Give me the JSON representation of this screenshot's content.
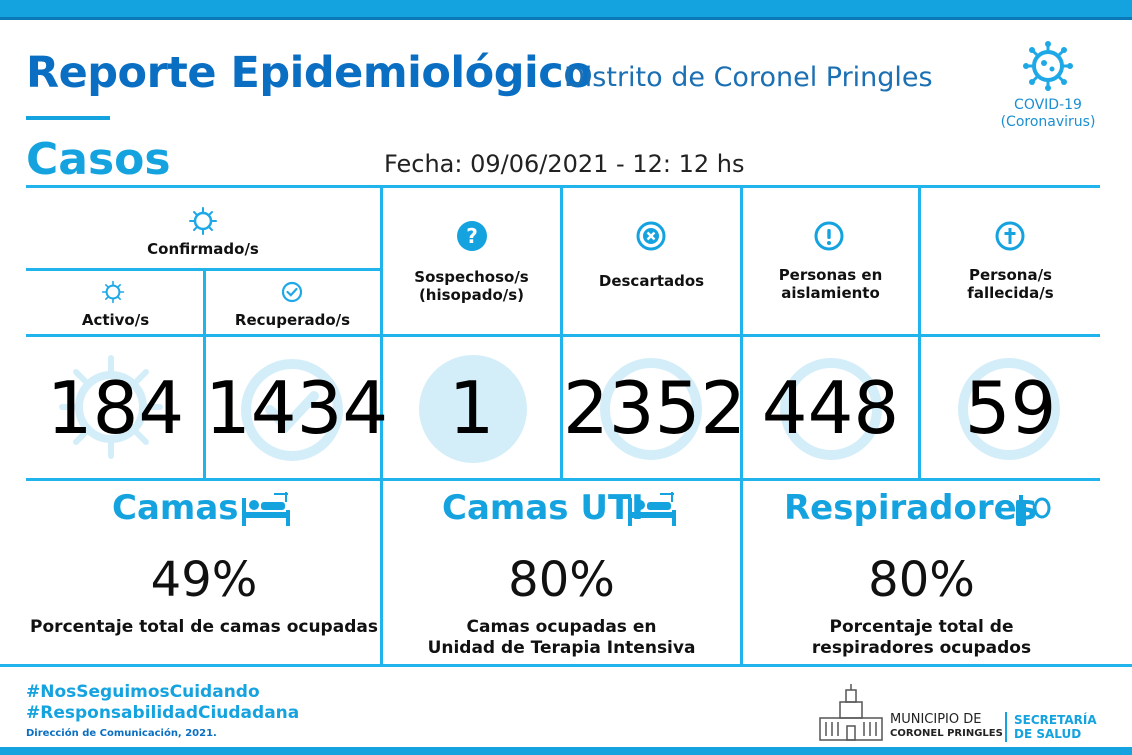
{
  "header": {
    "title": "Reporte Epidemiológico",
    "subtitle": "Distrito de Coronel Pringles",
    "section": "Casos",
    "date": "Fecha: 09/06/2021 - 12: 12 hs",
    "logo_text_1": "COVID-19",
    "logo_text_2": "(Coronavirus)"
  },
  "cases": {
    "confirmed_label": "Confirmado/s",
    "active_label": "Activo/s",
    "recovered_label": "Recuperado/s",
    "suspected_label_1": "Sospechoso/s",
    "suspected_label_2": "(hisopado/s)",
    "discarded_label": "Descartados",
    "isolation_label_1": "Personas en",
    "isolation_label_2": "aislamiento",
    "deceased_label_1": "Persona/s",
    "deceased_label_2": "fallecida/s",
    "active": "184",
    "recovered": "1434",
    "suspected": "1",
    "discarded": "2352",
    "isolation": "448",
    "deceased": "59"
  },
  "beds": {
    "title": "Camas",
    "value": "49%",
    "desc_1": "Porcentaje total de camas ocupadas"
  },
  "icu": {
    "title": "Camas UTI",
    "value": "80%",
    "desc_1": "Camas ocupadas en",
    "desc_2": "Unidad de Terapia Intensiva"
  },
  "resp": {
    "title": "Respiradores",
    "value": "80%",
    "desc_1": "Porcentaje total de",
    "desc_2": "respiradores ocupados"
  },
  "footer": {
    "hashtag_1": "#NosSeguimosCuidando",
    "hashtag_2": "#ResponsabilidadCiudadana",
    "credit": "Dirección de Comunicación, 2021.",
    "muni_1": "MUNICIPIO DE",
    "muni_2": "CORONEL PRINGLES",
    "secre_1": "SECRETARÍA",
    "secre_2": "DE SALUD"
  },
  "colors": {
    "primary_blue": "#0a6fc2",
    "accent_cyan": "#15a3e0",
    "line": "#21b4ec"
  }
}
